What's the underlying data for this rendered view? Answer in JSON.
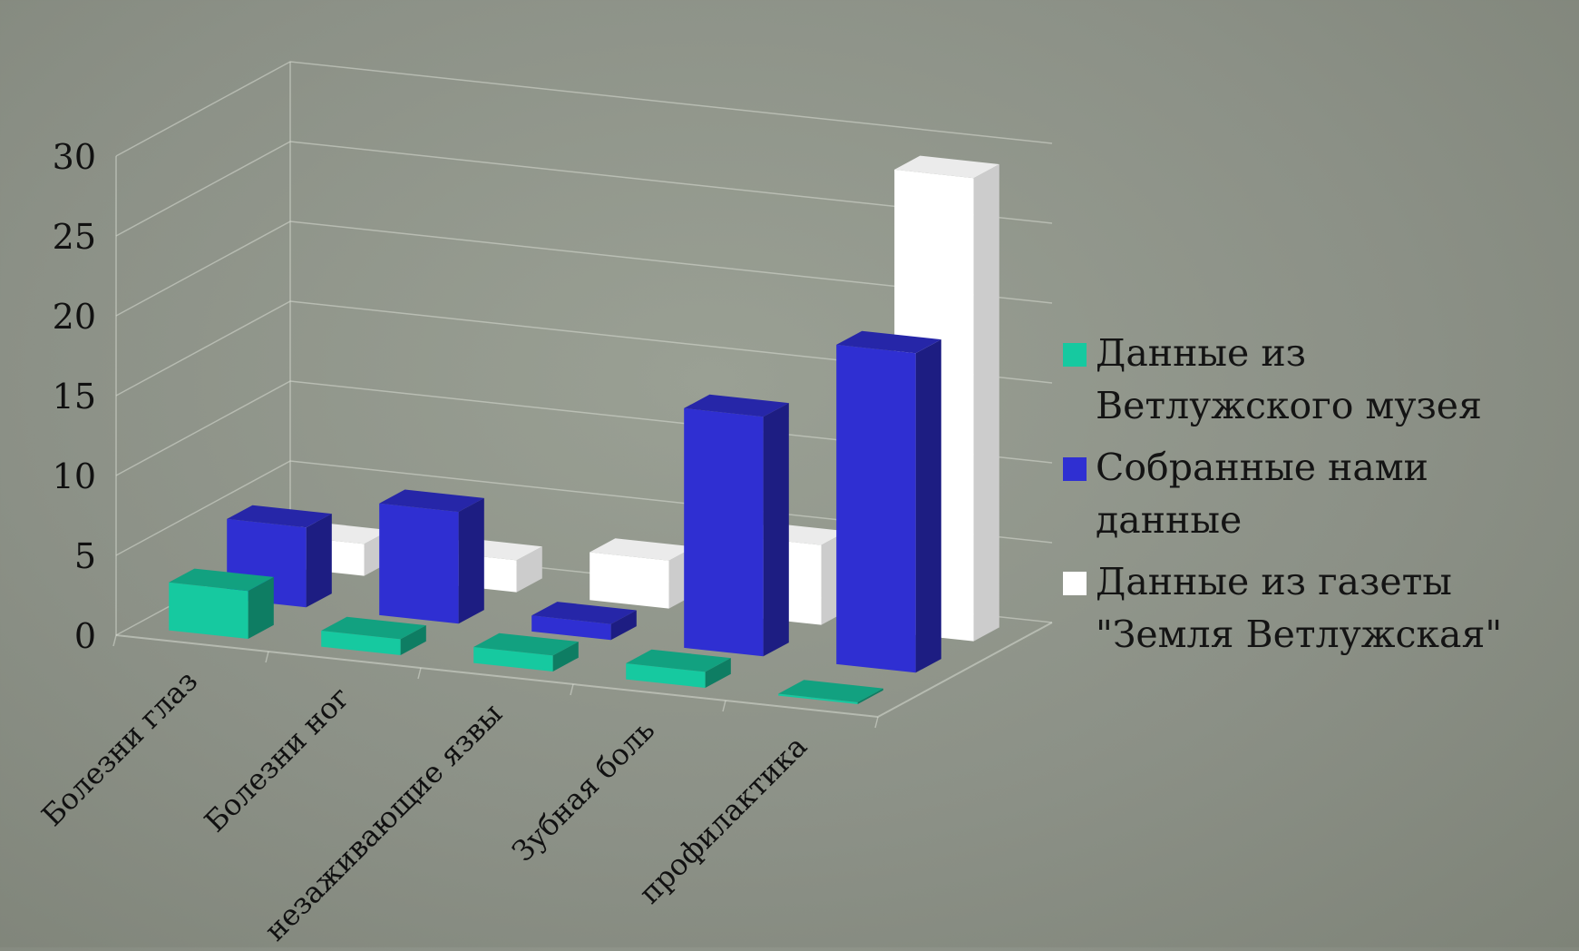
{
  "chart_data": {
    "type": "bar",
    "categories": [
      "Болезни глаз",
      "Болезни ног",
      "незаживающие язвы",
      "Зубная боль",
      "профилактика"
    ],
    "series": [
      {
        "name": "Данные из Ветлужского музея",
        "values": [
          3,
          1,
          1,
          1,
          0
        ],
        "color": "#16c9a0"
      },
      {
        "name": "Собранные нами данные",
        "values": [
          5,
          7,
          1,
          15,
          20
        ],
        "color": "#2f2fd2"
      },
      {
        "name": "Данные из газеты \"Земля Ветлужская\"",
        "values": [
          2,
          2,
          3,
          5,
          29
        ],
        "color": "#ffffff"
      }
    ],
    "ylim": [
      0,
      30
    ],
    "yticks": [
      0,
      5,
      10,
      15,
      20,
      25,
      30
    ],
    "grid": true,
    "view": "3d",
    "legend_position": "right"
  }
}
